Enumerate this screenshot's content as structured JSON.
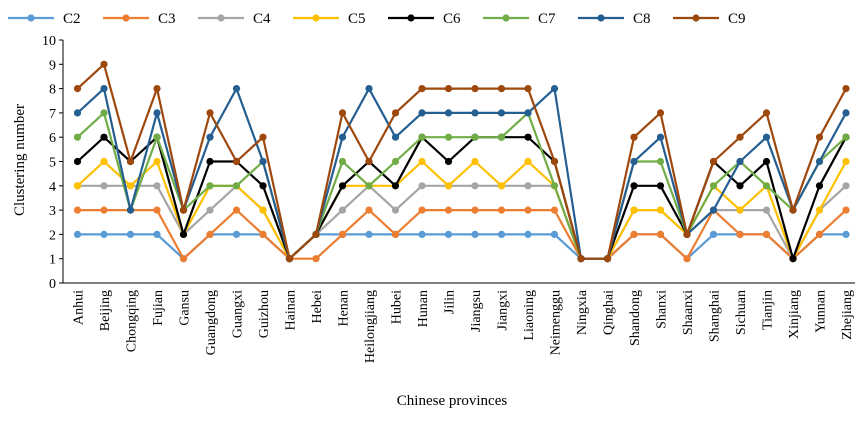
{
  "chart_data": {
    "type": "line",
    "title": "",
    "xlabel": "Chinese provinces",
    "ylabel": "Clustering number",
    "ylim": [
      0,
      10
    ],
    "yticks": [
      "0",
      "1",
      "2",
      "3",
      "4",
      "5",
      "6",
      "7",
      "8",
      "9",
      "10"
    ],
    "grid": false,
    "legend_position": "top",
    "categories": [
      "Anhui",
      "Beijing",
      "Chongqing",
      "Fujian",
      "Gansu",
      "Guangdong",
      "Guangxi",
      "Guizhou",
      "Hainan",
      "Hebei",
      "Henan",
      "Heilongjiang",
      "Hubei",
      "Hunan",
      "Jilin",
      "Jiangsu",
      "Jiangxi",
      "Liaoning",
      "Neimenggu",
      "Ningxia",
      "Qinghai",
      "Shandong",
      "Shanxi",
      "Shaanxi",
      "Shanghai",
      "Sichuan",
      "Tianjin",
      "Xinjiang",
      "Yunnan",
      "Zhejiang"
    ],
    "series": [
      {
        "name": "C2",
        "color": "#5b9bd5",
        "values": [
          2,
          2,
          2,
          2,
          1,
          2,
          2,
          2,
          1,
          2,
          2,
          2,
          2,
          2,
          2,
          2,
          2,
          2,
          2,
          1,
          1,
          2,
          2,
          1,
          2,
          2,
          2,
          1,
          2,
          2
        ]
      },
      {
        "name": "C3",
        "color": "#ed7d31",
        "values": [
          3,
          3,
          3,
          3,
          1,
          2,
          3,
          2,
          1,
          1,
          2,
          3,
          2,
          3,
          3,
          3,
          3,
          3,
          3,
          1,
          1,
          2,
          2,
          1,
          3,
          2,
          2,
          1,
          2,
          3
        ]
      },
      {
        "name": "C4",
        "color": "#a5a5a5",
        "values": [
          4,
          4,
          4,
          4,
          2,
          3,
          4,
          3,
          1,
          2,
          3,
          4,
          3,
          4,
          4,
          4,
          4,
          4,
          4,
          1,
          1,
          3,
          3,
          2,
          3,
          3,
          3,
          1,
          3,
          4
        ]
      },
      {
        "name": "C5",
        "color": "#ffc000",
        "values": [
          4,
          5,
          4,
          5,
          2,
          4,
          4,
          3,
          1,
          2,
          4,
          4,
          4,
          5,
          4,
          5,
          4,
          5,
          4,
          1,
          1,
          3,
          3,
          2,
          4,
          3,
          4,
          1,
          3,
          5
        ]
      },
      {
        "name": "C6",
        "color": "#000000",
        "values": [
          5,
          6,
          5,
          6,
          2,
          5,
          5,
          4,
          1,
          2,
          4,
          5,
          4,
          6,
          5,
          6,
          6,
          6,
          5,
          1,
          1,
          4,
          4,
          2,
          5,
          4,
          5,
          1,
          4,
          6
        ]
      },
      {
        "name": "C7",
        "color": "#70ad47",
        "values": [
          6,
          7,
          3,
          6,
          3,
          4,
          4,
          5,
          1,
          2,
          5,
          4,
          5,
          6,
          6,
          6,
          6,
          7,
          4,
          1,
          1,
          5,
          5,
          2,
          4,
          5,
          4,
          3,
          5,
          6
        ]
      },
      {
        "name": "C8",
        "color": "#255e91",
        "values": [
          7,
          8,
          3,
          7,
          3,
          6,
          8,
          5,
          1,
          2,
          6,
          8,
          6,
          7,
          7,
          7,
          7,
          7,
          8,
          1,
          1,
          5,
          6,
          2,
          3,
          5,
          6,
          3,
          5,
          7
        ]
      },
      {
        "name": "C9",
        "color": "#9e480e",
        "values": [
          8,
          9,
          5,
          8,
          3,
          7,
          5,
          6,
          1,
          2,
          7,
          5,
          7,
          8,
          8,
          8,
          8,
          8,
          5,
          1,
          1,
          6,
          7,
          2,
          5,
          6,
          7,
          3,
          6,
          8
        ]
      }
    ]
  }
}
